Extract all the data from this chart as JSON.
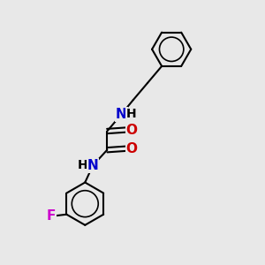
{
  "background_color": "#e8e8e8",
  "bond_color": "#000000",
  "atom_colors": {
    "N": "#0000cc",
    "O": "#cc0000",
    "F": "#cc00cc",
    "H": "#000000",
    "C": "#000000"
  },
  "font_size_atoms": 11,
  "figsize": [
    3.0,
    3.0
  ],
  "dpi": 100,
  "xlim": [
    0,
    10
  ],
  "ylim": [
    0,
    10
  ]
}
